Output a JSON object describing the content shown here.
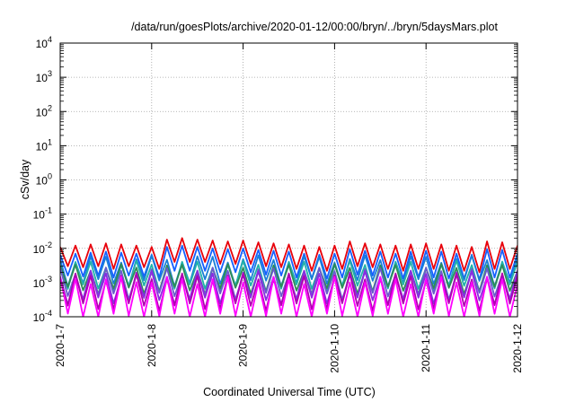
{
  "chart_data": {
    "type": "line",
    "title": "/data/run/goesPlots/archive/2020-01-12/00:00/bryn/../bryn/5daysMars.plot",
    "xlabel": "Coordinated Universal Time (UTC)",
    "ylabel": "cSv/day",
    "xlim": [
      "2020-01-07T00:00",
      "2020-01-12T00:00"
    ],
    "x_ticks": [
      "2020-1-7",
      "2020-1-8",
      "2020-1-9",
      "2020-1-10",
      "2020-1-11",
      "2020-1-12"
    ],
    "y_scale": "log",
    "ylim": [
      0.0001,
      10000
    ],
    "y_ticks": [
      {
        "base": "10",
        "exp": "-4"
      },
      {
        "base": "10",
        "exp": "-3"
      },
      {
        "base": "10",
        "exp": "-2"
      },
      {
        "base": "10",
        "exp": "-1"
      },
      {
        "base": "10",
        "exp": "0"
      },
      {
        "base": "10",
        "exp": "1"
      },
      {
        "base": "10",
        "exp": "2"
      },
      {
        "base": "10",
        "exp": "3"
      },
      {
        "base": "10",
        "exp": "4"
      }
    ],
    "grid": true,
    "pattern": "sawtooth, ~12 cycles per day",
    "series": [
      {
        "color": "#e8000b",
        "peak": 0.012,
        "trough": 0.0025,
        "points": [
          [
            "2020-01-07T00:00",
            0.011
          ],
          [
            "2020-01-07T02:00",
            0.003
          ],
          [
            "2020-01-07T04:00",
            0.012
          ],
          [
            "2020-01-07T06:00",
            0.0028
          ],
          [
            "2020-01-07T08:00",
            0.013
          ],
          [
            "2020-01-07T10:00",
            0.003
          ],
          [
            "2020-01-07T12:00",
            0.014
          ],
          [
            "2020-01-07T14:00",
            0.0025
          ],
          [
            "2020-01-07T16:00",
            0.013
          ],
          [
            "2020-01-07T18:00",
            0.003
          ],
          [
            "2020-01-07T20:00",
            0.012
          ],
          [
            "2020-01-07T22:00",
            0.0028
          ],
          [
            "2020-01-08T00:00",
            0.011
          ],
          [
            "2020-01-08T02:00",
            0.0025
          ],
          [
            "2020-01-08T04:00",
            0.018
          ],
          [
            "2020-01-08T06:00",
            0.004
          ],
          [
            "2020-01-08T08:00",
            0.02
          ],
          [
            "2020-01-08T10:00",
            0.004
          ],
          [
            "2020-01-08T12:00",
            0.018
          ],
          [
            "2020-01-08T14:00",
            0.004
          ],
          [
            "2020-01-08T16:00",
            0.017
          ],
          [
            "2020-01-08T18:00",
            0.0035
          ],
          [
            "2020-01-08T20:00",
            0.016
          ],
          [
            "2020-01-08T22:00",
            0.0035
          ],
          [
            "2020-01-09T00:00",
            0.017
          ],
          [
            "2020-01-09T02:00",
            0.0035
          ],
          [
            "2020-01-09T04:00",
            0.015
          ],
          [
            "2020-01-09T06:00",
            0.003
          ],
          [
            "2020-01-09T08:00",
            0.014
          ],
          [
            "2020-01-09T10:00",
            0.0028
          ],
          [
            "2020-01-09T12:00",
            0.013
          ],
          [
            "2020-01-09T14:00",
            0.0025
          ],
          [
            "2020-01-09T16:00",
            0.012
          ],
          [
            "2020-01-09T18:00",
            0.0022
          ],
          [
            "2020-01-09T20:00",
            0.011
          ],
          [
            "2020-01-09T22:00",
            0.0022
          ],
          [
            "2020-01-10T00:00",
            0.012
          ],
          [
            "2020-01-10T02:00",
            0.0025
          ],
          [
            "2020-01-10T04:00",
            0.016
          ],
          [
            "2020-01-10T06:00",
            0.003
          ],
          [
            "2020-01-10T08:00",
            0.014
          ],
          [
            "2020-01-10T10:00",
            0.0028
          ],
          [
            "2020-01-10T12:00",
            0.013
          ],
          [
            "2020-01-10T14:00",
            0.0025
          ],
          [
            "2020-01-10T16:00",
            0.012
          ],
          [
            "2020-01-10T18:00",
            0.0022
          ],
          [
            "2020-01-10T20:00",
            0.013
          ],
          [
            "2020-01-10T22:00",
            0.0025
          ],
          [
            "2020-01-11T00:00",
            0.014
          ],
          [
            "2020-01-11T02:00",
            0.0025
          ],
          [
            "2020-01-11T04:00",
            0.013
          ],
          [
            "2020-01-11T06:00",
            0.0022
          ],
          [
            "2020-01-11T08:00",
            0.012
          ],
          [
            "2020-01-11T10:00",
            0.0022
          ],
          [
            "2020-01-11T12:00",
            0.011
          ],
          [
            "2020-01-11T14:00",
            0.002
          ],
          [
            "2020-01-11T16:00",
            0.016
          ],
          [
            "2020-01-11T18:00",
            0.0025
          ],
          [
            "2020-01-11T20:00",
            0.015
          ],
          [
            "2020-01-11T22:00",
            0.0025
          ],
          [
            "2020-01-12T00:00",
            0.012
          ]
        ]
      },
      {
        "color": "#1560ff",
        "peak": 0.007,
        "trough": 0.0015,
        "points": [
          [
            "2020-01-07T00:00",
            0.0065
          ],
          [
            "2020-01-07T02:00",
            0.0016
          ],
          [
            "2020-01-07T04:00",
            0.007
          ],
          [
            "2020-01-07T06:00",
            0.0015
          ],
          [
            "2020-01-07T08:00",
            0.0075
          ],
          [
            "2020-01-07T10:00",
            0.0016
          ],
          [
            "2020-01-07T12:00",
            0.008
          ],
          [
            "2020-01-07T14:00",
            0.0014
          ],
          [
            "2020-01-07T16:00",
            0.0075
          ],
          [
            "2020-01-07T18:00",
            0.0016
          ],
          [
            "2020-01-07T20:00",
            0.007
          ],
          [
            "2020-01-07T22:00",
            0.0015
          ],
          [
            "2020-01-08T00:00",
            0.0065
          ],
          [
            "2020-01-08T02:00",
            0.0014
          ],
          [
            "2020-01-08T04:00",
            0.011
          ],
          [
            "2020-01-08T06:00",
            0.0022
          ],
          [
            "2020-01-08T08:00",
            0.012
          ],
          [
            "2020-01-08T10:00",
            0.0022
          ],
          [
            "2020-01-08T12:00",
            0.011
          ],
          [
            "2020-01-08T14:00",
            0.0022
          ],
          [
            "2020-01-08T16:00",
            0.01
          ],
          [
            "2020-01-08T18:00",
            0.002
          ],
          [
            "2020-01-08T20:00",
            0.0095
          ],
          [
            "2020-01-08T22:00",
            0.002
          ],
          [
            "2020-01-09T00:00",
            0.01
          ],
          [
            "2020-01-09T02:00",
            0.002
          ],
          [
            "2020-01-09T04:00",
            0.009
          ],
          [
            "2020-01-09T06:00",
            0.0017
          ],
          [
            "2020-01-09T08:00",
            0.0085
          ],
          [
            "2020-01-09T10:00",
            0.0016
          ],
          [
            "2020-01-09T12:00",
            0.008
          ],
          [
            "2020-01-09T14:00",
            0.0014
          ],
          [
            "2020-01-09T16:00",
            0.007
          ],
          [
            "2020-01-09T18:00",
            0.0013
          ],
          [
            "2020-01-09T20:00",
            0.0065
          ],
          [
            "2020-01-09T22:00",
            0.0013
          ],
          [
            "2020-01-10T00:00",
            0.007
          ],
          [
            "2020-01-10T02:00",
            0.0014
          ],
          [
            "2020-01-10T04:00",
            0.0095
          ],
          [
            "2020-01-10T06:00",
            0.0017
          ],
          [
            "2020-01-10T08:00",
            0.0085
          ],
          [
            "2020-01-10T10:00",
            0.0016
          ],
          [
            "2020-01-10T12:00",
            0.008
          ],
          [
            "2020-01-10T14:00",
            0.0014
          ],
          [
            "2020-01-10T16:00",
            0.007
          ],
          [
            "2020-01-10T18:00",
            0.0013
          ],
          [
            "2020-01-10T20:00",
            0.008
          ],
          [
            "2020-01-10T22:00",
            0.0014
          ],
          [
            "2020-01-11T00:00",
            0.0085
          ],
          [
            "2020-01-11T02:00",
            0.0014
          ],
          [
            "2020-01-11T04:00",
            0.008
          ],
          [
            "2020-01-11T06:00",
            0.0013
          ],
          [
            "2020-01-11T08:00",
            0.007
          ],
          [
            "2020-01-11T10:00",
            0.0013
          ],
          [
            "2020-01-11T12:00",
            0.0065
          ],
          [
            "2020-01-11T14:00",
            0.0012
          ],
          [
            "2020-01-11T16:00",
            0.0095
          ],
          [
            "2020-01-11T18:00",
            0.0014
          ],
          [
            "2020-01-11T20:00",
            0.009
          ],
          [
            "2020-01-11T22:00",
            0.0014
          ],
          [
            "2020-01-12T00:00",
            0.007
          ]
        ]
      },
      {
        "color": "#1a7fd6",
        "peak": 0.005,
        "trough": 0.001
      },
      {
        "color": "#20b2aa",
        "peak": 0.0035,
        "trough": 0.0007
      },
      {
        "color": "#2e8b57",
        "peak": 0.0028,
        "trough": 0.0006
      },
      {
        "color": "#6a5acd",
        "peak": 0.0022,
        "trough": 0.0004
      },
      {
        "color": "#8a2be2",
        "peak": 0.0018,
        "trough": 0.0003
      },
      {
        "color": "#b000b0",
        "peak": 0.0015,
        "trough": 0.0002
      },
      {
        "color": "#ff00ff",
        "peak": 0.0012,
        "trough": 0.0001
      }
    ]
  }
}
